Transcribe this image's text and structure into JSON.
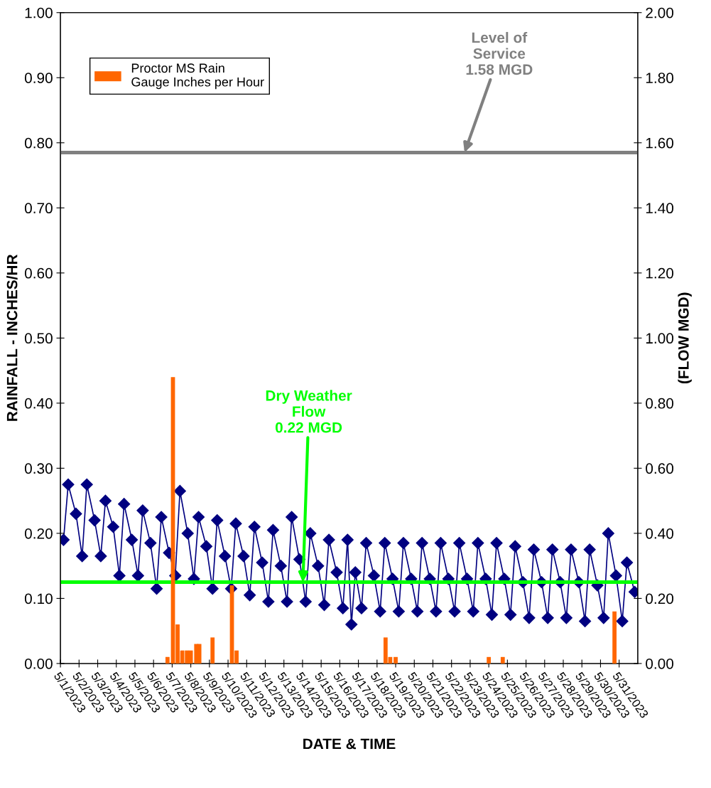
{
  "chart_data": {
    "type": "bar",
    "xlabel": "DATE & TIME",
    "ylabel": "RAINFALL - INCHES/HR",
    "y2label": "(FLOW MGD)",
    "xlim": [
      "2023-05-01",
      "2023-06-01"
    ],
    "xticks": [
      {
        "value": "2023-05-01",
        "label": "5/1/2023"
      },
      {
        "value": "2023-05-02",
        "label": "5/2/2023"
      },
      {
        "value": "2023-05-03",
        "label": "5/3/2023"
      },
      {
        "value": "2023-05-04",
        "label": "5/4/2023"
      },
      {
        "value": "2023-05-05",
        "label": "5/5/2023"
      },
      {
        "value": "2023-05-06",
        "label": "5/6/2023"
      },
      {
        "value": "2023-05-07",
        "label": "5/7/2023"
      },
      {
        "value": "2023-05-08",
        "label": "5/8/2023"
      },
      {
        "value": "2023-05-09",
        "label": "5/9/2023"
      },
      {
        "value": "2023-05-10",
        "label": "5/10/2023"
      },
      {
        "value": "2023-05-11",
        "label": "5/11/2023"
      },
      {
        "value": "2023-05-12",
        "label": "5/12/2023"
      },
      {
        "value": "2023-05-13",
        "label": "5/13/2023"
      },
      {
        "value": "2023-05-14",
        "label": "5/14/2023"
      },
      {
        "value": "2023-05-15",
        "label": "5/15/2023"
      },
      {
        "value": "2023-05-16",
        "label": "5/16/2023"
      },
      {
        "value": "2023-05-17",
        "label": "5/17/2023"
      },
      {
        "value": "2023-05-18",
        "label": "5/18/2023"
      },
      {
        "value": "2023-05-19",
        "label": "5/19/2023"
      },
      {
        "value": "2023-05-20",
        "label": "5/20/2023"
      },
      {
        "value": "2023-05-21",
        "label": "5/21/2023"
      },
      {
        "value": "2023-05-22",
        "label": "5/22/2023"
      },
      {
        "value": "2023-05-23",
        "label": "5/23/2023"
      },
      {
        "value": "2023-05-24",
        "label": "5/24/2023"
      },
      {
        "value": "2023-05-25",
        "label": "5/25/2023"
      },
      {
        "value": "2023-05-26",
        "label": "5/26/2023"
      },
      {
        "value": "2023-05-27",
        "label": "5/27/2023"
      },
      {
        "value": "2023-05-28",
        "label": "5/28/2023"
      },
      {
        "value": "2023-05-29",
        "label": "5/29/2023"
      },
      {
        "value": "2023-05-30",
        "label": "5/30/2023"
      },
      {
        "value": "2023-05-31",
        "label": "5/31/2023"
      }
    ],
    "ylim": [
      0,
      1
    ],
    "yticks": [
      {
        "value": 0,
        "label": "0.00"
      },
      {
        "value": 0.1,
        "label": "0.10"
      },
      {
        "value": 0.2,
        "label": "0.20"
      },
      {
        "value": 0.3,
        "label": "0.30"
      },
      {
        "value": 0.4,
        "label": "0.40"
      },
      {
        "value": 0.5,
        "label": "0.50"
      },
      {
        "value": 0.6,
        "label": "0.60"
      },
      {
        "value": 0.7,
        "label": "0.70"
      },
      {
        "value": 0.8,
        "label": "0.80"
      },
      {
        "value": 0.9,
        "label": "0.90"
      },
      {
        "value": 1,
        "label": "1.00"
      }
    ],
    "y2lim": [
      0,
      2
    ],
    "y2ticks": [
      {
        "value": 0,
        "label": "0.00"
      },
      {
        "value": 0.2,
        "label": "0.20"
      },
      {
        "value": 0.4,
        "label": "0.40"
      },
      {
        "value": 0.6,
        "label": "0.60"
      },
      {
        "value": 0.8,
        "label": "0.80"
      },
      {
        "value": 1,
        "label": "1.00"
      },
      {
        "value": 1.2,
        "label": "1.20"
      },
      {
        "value": 1.4,
        "label": "1.40"
      },
      {
        "value": 1.6,
        "label": "1.60"
      },
      {
        "value": 1.8,
        "label": "1.80"
      },
      {
        "value": 2,
        "label": "2.00"
      }
    ],
    "legend": "top left",
    "series": [
      {
        "name": "Proctor MS Rain\nGauge Inches per Hour",
        "color": "#ff6600",
        "x": [
          "2023-05-06T18:00",
          "2023-05-07T01:00",
          "2023-05-07T07:00",
          "2023-05-07T13:00",
          "2023-05-07T19:00",
          "2023-05-08T00:00",
          "2023-05-08T07:00",
          "2023-05-08T11:00",
          "2023-05-09T04:00",
          "2023-05-10T05:00",
          "2023-05-10T11:00",
          "2023-05-18T11:00",
          "2023-05-18T17:00",
          "2023-05-19T00:00",
          "2023-05-24T00:00",
          "2023-05-24T18:00",
          "2023-05-30T18:00"
        ],
        "values": [
          0.01,
          0.44,
          0.06,
          0.02,
          0.02,
          0.02,
          0.03,
          0.03,
          0.04,
          0.12,
          0.02,
          0.04,
          0.01,
          0.01,
          0.01,
          0.01,
          0.08
        ]
      },
      {
        "type": "line",
        "axis": "y2",
        "color": "#000080",
        "marker": "diamond",
        "line_style": "solid",
        "x": [
          "2023-05-01T04:00",
          "2023-05-01T10:00",
          "2023-05-01T20:00",
          "2023-05-02T04:00",
          "2023-05-02T10:00",
          "2023-05-02T20:00",
          "2023-05-03T04:00",
          "2023-05-03T10:00",
          "2023-05-03T20:00",
          "2023-05-04T04:00",
          "2023-05-04T10:00",
          "2023-05-04T20:00",
          "2023-05-05T04:00",
          "2023-05-05T10:00",
          "2023-05-05T20:00",
          "2023-05-06T04:00",
          "2023-05-06T10:00",
          "2023-05-06T20:00",
          "2023-05-07T04:00",
          "2023-05-07T10:00",
          "2023-05-07T20:00",
          "2023-05-08T04:00",
          "2023-05-08T10:00",
          "2023-05-08T20:00",
          "2023-05-09T04:00",
          "2023-05-09T10:00",
          "2023-05-09T20:00",
          "2023-05-10T04:00",
          "2023-05-10T10:00",
          "2023-05-10T20:00",
          "2023-05-11T04:00",
          "2023-05-11T10:00",
          "2023-05-11T20:00",
          "2023-05-12T04:00",
          "2023-05-12T10:00",
          "2023-05-12T20:00",
          "2023-05-13T04:00",
          "2023-05-13T10:00",
          "2023-05-13T20:00",
          "2023-05-14T04:00",
          "2023-05-14T10:00",
          "2023-05-14T20:00",
          "2023-05-15T04:00",
          "2023-05-15T10:00",
          "2023-05-15T20:00",
          "2023-05-16T04:00",
          "2023-05-16T10:00",
          "2023-05-16T15:00",
          "2023-05-16T20:00",
          "2023-05-17T04:00",
          "2023-05-17T10:00",
          "2023-05-17T20:00",
          "2023-05-18T04:00",
          "2023-05-18T10:00",
          "2023-05-18T20:00",
          "2023-05-19T04:00",
          "2023-05-19T10:00",
          "2023-05-19T20:00",
          "2023-05-20T04:00",
          "2023-05-20T10:00",
          "2023-05-20T20:00",
          "2023-05-21T04:00",
          "2023-05-21T10:00",
          "2023-05-21T20:00",
          "2023-05-22T04:00",
          "2023-05-22T10:00",
          "2023-05-22T20:00",
          "2023-05-23T04:00",
          "2023-05-23T10:00",
          "2023-05-23T20:00",
          "2023-05-24T04:00",
          "2023-05-24T10:00",
          "2023-05-24T20:00",
          "2023-05-25T04:00",
          "2023-05-25T10:00",
          "2023-05-25T20:00",
          "2023-05-26T04:00",
          "2023-05-26T10:00",
          "2023-05-26T20:00",
          "2023-05-27T04:00",
          "2023-05-27T10:00",
          "2023-05-27T20:00",
          "2023-05-28T04:00",
          "2023-05-28T10:00",
          "2023-05-28T20:00",
          "2023-05-29T04:00",
          "2023-05-29T10:00",
          "2023-05-29T20:00",
          "2023-05-30T04:00",
          "2023-05-30T10:00",
          "2023-05-30T20:00",
          "2023-05-31T04:00",
          "2023-05-31T10:00",
          "2023-05-31T20:00"
        ],
        "values": [
          0.38,
          0.55,
          0.46,
          0.33,
          0.55,
          0.44,
          0.33,
          0.5,
          0.42,
          0.27,
          0.49,
          0.38,
          0.27,
          0.47,
          0.37,
          0.23,
          0.45,
          0.34,
          0.27,
          0.53,
          0.4,
          0.26,
          0.45,
          0.36,
          0.23,
          0.44,
          0.33,
          0.23,
          0.43,
          0.33,
          0.21,
          0.42,
          0.31,
          0.19,
          0.41,
          0.3,
          0.19,
          0.45,
          0.32,
          0.19,
          0.4,
          0.3,
          0.18,
          0.38,
          0.28,
          0.17,
          0.38,
          0.12,
          0.28,
          0.17,
          0.37,
          0.27,
          0.16,
          0.37,
          0.26,
          0.16,
          0.37,
          0.26,
          0.16,
          0.37,
          0.26,
          0.16,
          0.37,
          0.26,
          0.16,
          0.37,
          0.26,
          0.16,
          0.37,
          0.26,
          0.15,
          0.37,
          0.26,
          0.15,
          0.36,
          0.25,
          0.14,
          0.35,
          0.25,
          0.14,
          0.35,
          0.25,
          0.14,
          0.35,
          0.25,
          0.13,
          0.35,
          0.24,
          0.14,
          0.4,
          0.27,
          0.13,
          0.31,
          0.22
        ]
      }
    ],
    "ref_lines": [
      {
        "axis": "y2",
        "value": 1.57,
        "label": "Level of\nService\n1.58 MGD",
        "color": "#808080",
        "line_style": "solid"
      },
      {
        "axis": "y2",
        "value": 0.25,
        "label": "Dry Weather\nFlow\n0.22 MGD",
        "color": "#00ff00",
        "line_style": "solid"
      }
    ]
  }
}
